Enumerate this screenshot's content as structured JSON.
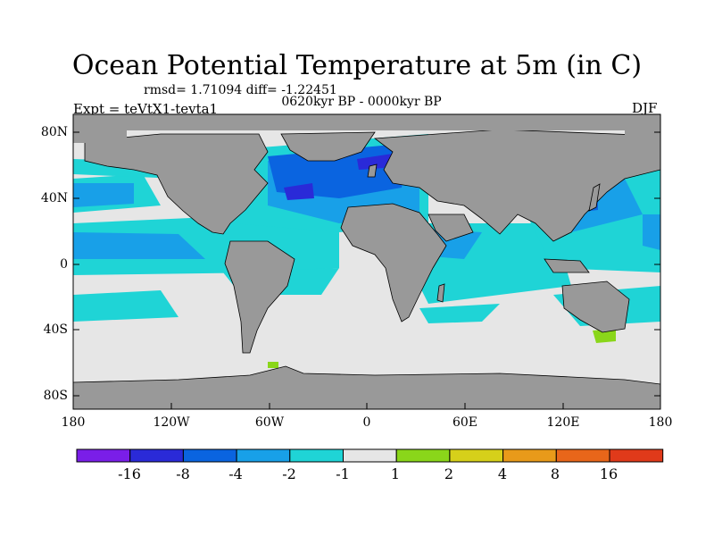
{
  "title": "Ocean Potential Temperature at 5m (in C)",
  "stats": "rmsd= 1.71094 diff= -1.22451",
  "period": "0620kyr BP - 0000kyr BP",
  "experiment": "Expt = teVtX1-tevta1",
  "season": "DJF",
  "lat_labels": [
    "80N",
    "40N",
    "0",
    "40S",
    "80S"
  ],
  "lon_labels": [
    "180",
    "120W",
    "60W",
    "0",
    "60E",
    "120E",
    "180"
  ],
  "colorbar": {
    "labels": [
      "-16",
      "-8",
      "-4",
      "-2",
      "-1",
      "1",
      "2",
      "4",
      "8",
      "16"
    ],
    "colors": [
      "#7a1ee8",
      "#2a2ad8",
      "#0a64e0",
      "#18a0e8",
      "#1fd4d6",
      "#e6e6e6",
      "#8ad61a",
      "#d6d01a",
      "#e89a1a",
      "#e8661a",
      "#e03a1a"
    ]
  },
  "legend_colors": {
    "land": "#999999",
    "cool": "#1fd4d6",
    "cooler": "#18a0e8",
    "coolest": "#0a64e0",
    "strongest": "#2a2ad8",
    "neutral": "#e6e6e6",
    "warm": "#8ad61a"
  }
}
